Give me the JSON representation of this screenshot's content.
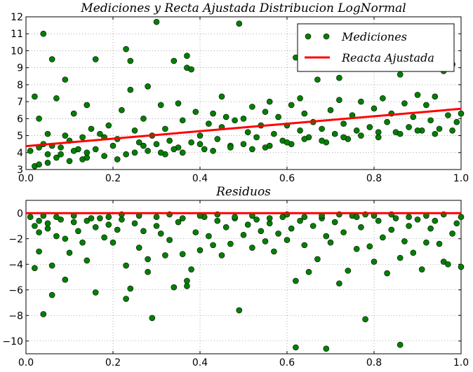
{
  "chart_data": [
    {
      "type": "scatter",
      "title": "Mediciones y Recta Ajustada Distribucion LogNormal",
      "xlim": [
        0.0,
        1.0
      ],
      "ylim": [
        3,
        12
      ],
      "xticks": [
        "0.0",
        "0.2",
        "0.4",
        "0.6",
        "0.8",
        "1.0"
      ],
      "yticks": [
        "3",
        "4",
        "5",
        "6",
        "7",
        "8",
        "9",
        "10",
        "11",
        "12"
      ],
      "grid": true,
      "legend_position": "top-right",
      "colors": {
        "points": "#008000",
        "line": "#ff0000"
      },
      "series": [
        {
          "name": "Mediciones",
          "kind": "points",
          "points": [
            [
              0.01,
              4.1
            ],
            [
              0.02,
              7.3
            ],
            [
              0.02,
              3.2
            ],
            [
              0.03,
              3.3
            ],
            [
              0.03,
              6.0
            ],
            [
              0.04,
              11.0
            ],
            [
              0.04,
              4.5
            ],
            [
              0.05,
              3.4
            ],
            [
              0.05,
              3.9
            ],
            [
              0.05,
              5.1
            ],
            [
              0.06,
              9.5
            ],
            [
              0.06,
              4.4
            ],
            [
              0.07,
              7.2
            ],
            [
              0.07,
              3.7
            ],
            [
              0.08,
              4.3
            ],
            [
              0.09,
              5.0
            ],
            [
              0.09,
              8.3
            ],
            [
              0.1,
              4.7
            ],
            [
              0.1,
              3.5
            ],
            [
              0.11,
              6.3
            ],
            [
              0.12,
              4.2
            ],
            [
              0.13,
              4.9
            ],
            [
              0.13,
              3.6
            ],
            [
              0.14,
              6.8
            ],
            [
              0.14,
              4.0
            ],
            [
              0.15,
              5.4
            ],
            [
              0.16,
              9.5
            ],
            [
              0.16,
              4.2
            ],
            [
              0.17,
              5.1
            ],
            [
              0.18,
              3.8
            ],
            [
              0.19,
              5.6
            ],
            [
              0.2,
              4.4
            ],
            [
              0.21,
              4.8
            ],
            [
              0.22,
              6.5
            ],
            [
              0.23,
              3.9
            ],
            [
              0.23,
              10.1
            ],
            [
              0.24,
              7.7
            ],
            [
              0.24,
              9.4
            ],
            [
              0.25,
              5.3
            ],
            [
              0.26,
              4.6
            ],
            [
              0.27,
              6.0
            ],
            [
              0.28,
              7.9
            ],
            [
              0.28,
              4.1
            ],
            [
              0.29,
              5.0
            ],
            [
              0.3,
              11.7
            ],
            [
              0.3,
              4.5
            ],
            [
              0.31,
              6.8
            ],
            [
              0.32,
              5.4
            ],
            [
              0.32,
              3.9
            ],
            [
              0.33,
              4.7
            ],
            [
              0.34,
              9.4
            ],
            [
              0.35,
              6.9
            ],
            [
              0.35,
              4.3
            ],
            [
              0.36,
              5.9
            ],
            [
              0.37,
              9.7
            ],
            [
              0.37,
              9.0
            ],
            [
              0.38,
              8.9
            ],
            [
              0.38,
              4.6
            ],
            [
              0.39,
              6.4
            ],
            [
              0.4,
              5.0
            ],
            [
              0.41,
              4.2
            ],
            [
              0.42,
              5.7
            ],
            [
              0.43,
              6.3
            ],
            [
              0.44,
              4.8
            ],
            [
              0.45,
              5.5
            ],
            [
              0.45,
              7.3
            ],
            [
              0.46,
              6.1
            ],
            [
              0.47,
              4.4
            ],
            [
              0.48,
              5.9
            ],
            [
              0.49,
              11.6
            ],
            [
              0.5,
              6.0
            ],
            [
              0.5,
              4.5
            ],
            [
              0.51,
              5.2
            ],
            [
              0.52,
              6.7
            ],
            [
              0.53,
              4.9
            ],
            [
              0.54,
              5.6
            ],
            [
              0.55,
              6.4
            ],
            [
              0.55,
              4.3
            ],
            [
              0.56,
              7.0
            ],
            [
              0.57,
              5.1
            ],
            [
              0.58,
              6.1
            ],
            [
              0.59,
              4.7
            ],
            [
              0.6,
              5.6
            ],
            [
              0.61,
              6.8
            ],
            [
              0.61,
              4.5
            ],
            [
              0.62,
              9.6
            ],
            [
              0.63,
              5.3
            ],
            [
              0.63,
              7.2
            ],
            [
              0.64,
              6.3
            ],
            [
              0.65,
              4.9
            ],
            [
              0.66,
              5.8
            ],
            [
              0.67,
              8.3
            ],
            [
              0.68,
              5.4
            ],
            [
              0.69,
              4.6
            ],
            [
              0.7,
              6.5
            ],
            [
              0.71,
              5.1
            ],
            [
              0.72,
              8.4
            ],
            [
              0.72,
              7.1
            ],
            [
              0.73,
              5.7
            ],
            [
              0.74,
              4.8
            ],
            [
              0.75,
              6.2
            ],
            [
              0.76,
              5.3
            ],
            [
              0.77,
              7.0
            ],
            [
              0.78,
              9.1
            ],
            [
              0.79,
              5.5
            ],
            [
              0.8,
              6.6
            ],
            [
              0.81,
              4.9
            ],
            [
              0.82,
              7.2
            ],
            [
              0.83,
              5.8
            ],
            [
              0.84,
              6.3
            ],
            [
              0.85,
              5.2
            ],
            [
              0.86,
              8.6
            ],
            [
              0.87,
              6.9
            ],
            [
              0.88,
              5.5
            ],
            [
              0.89,
              6.1
            ],
            [
              0.9,
              7.4
            ],
            [
              0.91,
              5.3
            ],
            [
              0.92,
              6.8
            ],
            [
              0.93,
              5.9
            ],
            [
              0.94,
              7.3
            ],
            [
              0.95,
              5.4
            ],
            [
              0.96,
              8.8
            ],
            [
              0.97,
              6.2
            ],
            [
              0.98,
              9.2
            ],
            [
              0.99,
              5.8
            ],
            [
              1.0,
              6.3
            ],
            [
              0.03,
              4.3
            ],
            [
              0.08,
              3.9
            ],
            [
              0.11,
              4.1
            ],
            [
              0.14,
              3.7
            ],
            [
              0.18,
              4.9
            ],
            [
              0.21,
              3.6
            ],
            [
              0.25,
              4.0
            ],
            [
              0.27,
              4.4
            ],
            [
              0.31,
              4.0
            ],
            [
              0.34,
              4.2
            ],
            [
              0.36,
              4.0
            ],
            [
              0.4,
              4.5
            ],
            [
              0.43,
              4.1
            ],
            [
              0.47,
              4.3
            ],
            [
              0.52,
              4.2
            ],
            [
              0.56,
              4.4
            ],
            [
              0.6,
              4.6
            ],
            [
              0.64,
              4.8
            ],
            [
              0.68,
              4.7
            ],
            [
              0.73,
              4.9
            ],
            [
              0.77,
              5.0
            ],
            [
              0.81,
              5.2
            ],
            [
              0.86,
              5.1
            ],
            [
              0.9,
              5.3
            ],
            [
              0.94,
              5.1
            ],
            [
              0.98,
              5.3
            ]
          ]
        },
        {
          "name": "Reacta Ajustada",
          "kind": "line",
          "points": [
            [
              0.0,
              4.38
            ],
            [
              1.0,
              6.58
            ]
          ]
        }
      ]
    },
    {
      "type": "scatter",
      "title": "Residuos",
      "xlim": [
        0.0,
        1.0
      ],
      "ylim": [
        -11,
        1
      ],
      "xticks": [
        "0.0",
        "0.2",
        "0.4",
        "0.6",
        "0.8",
        "1.0"
      ],
      "yticks": [
        "0",
        "−2",
        "−4",
        "−6",
        "−8",
        "−10"
      ],
      "ytick_values": [
        0,
        -2,
        -4,
        -6,
        -8,
        -10
      ],
      "grid": true,
      "colors": {
        "points": "#008000",
        "line": "#ff0000"
      },
      "zero_line": 0,
      "points": [
        [
          0.01,
          -0.3
        ],
        [
          0.02,
          -4.3
        ],
        [
          0.02,
          -1.0
        ],
        [
          0.03,
          -1.5
        ],
        [
          0.03,
          -3.0
        ],
        [
          0.04,
          -7.9
        ],
        [
          0.04,
          -0.2
        ],
        [
          0.05,
          -1.2
        ],
        [
          0.05,
          -0.8
        ],
        [
          0.06,
          -6.4
        ],
        [
          0.06,
          -4.1
        ],
        [
          0.07,
          -1.8
        ],
        [
          0.08,
          -0.5
        ],
        [
          0.09,
          -5.2
        ],
        [
          0.09,
          -2.0
        ],
        [
          0.1,
          -3.1
        ],
        [
          0.11,
          -0.7
        ],
        [
          0.12,
          -1.4
        ],
        [
          0.13,
          -2.3
        ],
        [
          0.14,
          -3.7
        ],
        [
          0.14,
          -0.6
        ],
        [
          0.16,
          -6.2
        ],
        [
          0.16,
          -1.1
        ],
        [
          0.17,
          -0.4
        ],
        [
          0.18,
          -1.9
        ],
        [
          0.19,
          -0.9
        ],
        [
          0.2,
          -2.3
        ],
        [
          0.21,
          -1.3
        ],
        [
          0.22,
          -0.5
        ],
        [
          0.23,
          -6.7
        ],
        [
          0.23,
          -4.1
        ],
        [
          0.24,
          -5.9
        ],
        [
          0.25,
          -0.8
        ],
        [
          0.26,
          -2.7
        ],
        [
          0.27,
          -1.4
        ],
        [
          0.28,
          -4.6
        ],
        [
          0.28,
          -3.6
        ],
        [
          0.29,
          -8.2
        ],
        [
          0.3,
          -1.0
        ],
        [
          0.31,
          -1.6
        ],
        [
          0.32,
          -3.3
        ],
        [
          0.33,
          -2.1
        ],
        [
          0.34,
          -5.8
        ],
        [
          0.35,
          -0.7
        ],
        [
          0.36,
          -3.2
        ],
        [
          0.37,
          -5.7
        ],
        [
          0.37,
          -5.3
        ],
        [
          0.38,
          -4.4
        ],
        [
          0.39,
          -1.5
        ],
        [
          0.4,
          -2.9
        ],
        [
          0.41,
          -0.3
        ],
        [
          0.42,
          -1.8
        ],
        [
          0.43,
          -2.5
        ],
        [
          0.44,
          -0.6
        ],
        [
          0.45,
          -3.3
        ],
        [
          0.46,
          -1.1
        ],
        [
          0.47,
          -2.4
        ],
        [
          0.48,
          -0.4
        ],
        [
          0.49,
          -7.6
        ],
        [
          0.5,
          -1.7
        ],
        [
          0.51,
          -0.9
        ],
        [
          0.52,
          -2.7
        ],
        [
          0.53,
          -0.5
        ],
        [
          0.54,
          -1.4
        ],
        [
          0.55,
          -2.2
        ],
        [
          0.56,
          -0.8
        ],
        [
          0.57,
          -3.0
        ],
        [
          0.58,
          -1.6
        ],
        [
          0.59,
          -0.3
        ],
        [
          0.6,
          -2.1
        ],
        [
          0.61,
          -1.2
        ],
        [
          0.62,
          -10.5
        ],
        [
          0.62,
          -5.3
        ],
        [
          0.63,
          -0.6
        ],
        [
          0.64,
          -2.5
        ],
        [
          0.65,
          -4.6
        ],
        [
          0.66,
          -1.0
        ],
        [
          0.67,
          -3.6
        ],
        [
          0.68,
          -0.4
        ],
        [
          0.69,
          -10.6
        ],
        [
          0.69,
          -1.8
        ],
        [
          0.7,
          -2.3
        ],
        [
          0.71,
          -0.7
        ],
        [
          0.72,
          -5.5
        ],
        [
          0.73,
          -1.5
        ],
        [
          0.74,
          -4.5
        ],
        [
          0.75,
          -0.2
        ],
        [
          0.76,
          -2.8
        ],
        [
          0.77,
          -1.1
        ],
        [
          0.78,
          -8.3
        ],
        [
          0.78,
          -0.1
        ],
        [
          0.79,
          -2.6
        ],
        [
          0.8,
          -3.8
        ],
        [
          0.81,
          -0.6
        ],
        [
          0.82,
          -1.9
        ],
        [
          0.83,
          -4.7
        ],
        [
          0.84,
          -1.3
        ],
        [
          0.85,
          -0.4
        ],
        [
          0.86,
          -10.3
        ],
        [
          0.86,
          -3.5
        ],
        [
          0.87,
          -2.2
        ],
        [
          0.88,
          -1.0
        ],
        [
          0.89,
          -3.1
        ],
        [
          0.9,
          -0.5
        ],
        [
          0.91,
          -4.4
        ],
        [
          0.92,
          -2.3
        ],
        [
          0.93,
          -1.2
        ],
        [
          0.94,
          -0.6
        ],
        [
          0.95,
          -2.4
        ],
        [
          0.96,
          -3.8
        ],
        [
          0.97,
          -4.0
        ],
        [
          0.98,
          -1.6
        ],
        [
          0.99,
          -0.8
        ],
        [
          1.0,
          -4.2
        ],
        [
          0.03,
          -0.6
        ],
        [
          0.07,
          -0.3
        ],
        [
          0.11,
          -0.2
        ],
        [
          0.15,
          -0.4
        ],
        [
          0.19,
          -0.3
        ],
        [
          0.22,
          -0.1
        ],
        [
          0.26,
          -0.2
        ],
        [
          0.3,
          -0.3
        ],
        [
          0.33,
          -0.1
        ],
        [
          0.36,
          -0.4
        ],
        [
          0.4,
          -0.2
        ],
        [
          0.44,
          -0.1
        ],
        [
          0.48,
          -0.3
        ],
        [
          0.52,
          -0.2
        ],
        [
          0.56,
          -0.4
        ],
        [
          0.6,
          -0.1
        ],
        [
          0.64,
          -0.3
        ],
        [
          0.68,
          -0.2
        ],
        [
          0.72,
          -0.1
        ],
        [
          0.76,
          -0.3
        ],
        [
          0.8,
          -0.2
        ],
        [
          0.84,
          -0.1
        ],
        [
          0.88,
          -0.3
        ],
        [
          0.92,
          -0.2
        ],
        [
          0.96,
          -0.1
        ],
        [
          1.0,
          -0.3
        ]
      ]
    }
  ]
}
